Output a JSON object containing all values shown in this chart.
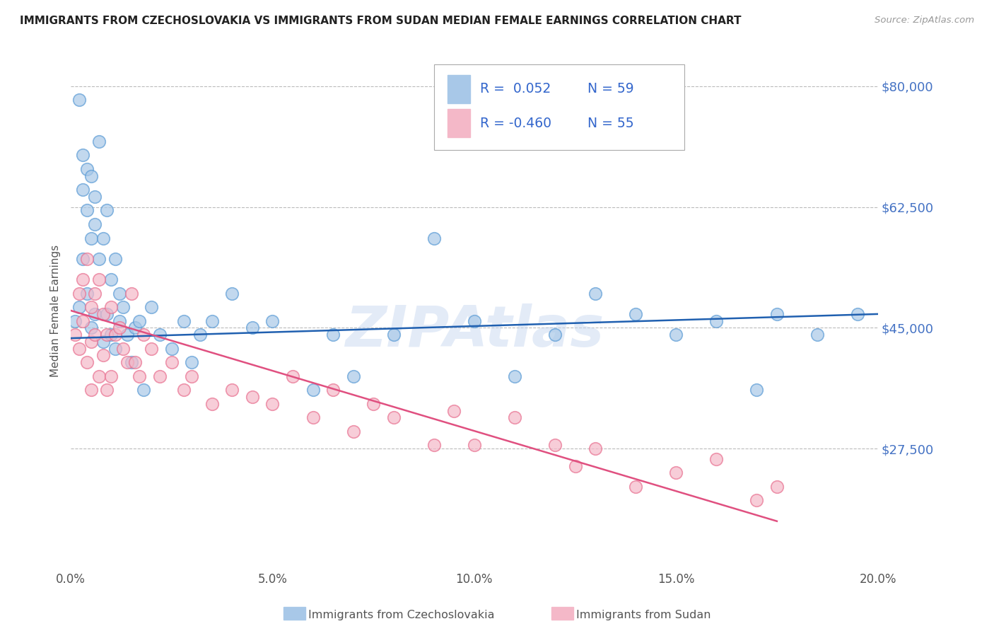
{
  "title": "IMMIGRANTS FROM CZECHOSLOVAKIA VS IMMIGRANTS FROM SUDAN MEDIAN FEMALE EARNINGS CORRELATION CHART",
  "source": "Source: ZipAtlas.com",
  "ylabel": "Median Female Earnings",
  "xmin": 0.0,
  "xmax": 0.2,
  "ymin": 10000,
  "ymax": 85000,
  "yticks": [
    27500,
    45000,
    62500,
    80000
  ],
  "ytick_labels": [
    "$27,500",
    "$45,000",
    "$62,500",
    "$80,000"
  ],
  "xticks": [
    0.0,
    0.05,
    0.1,
    0.15,
    0.2
  ],
  "xtick_labels": [
    "0.0%",
    "5.0%",
    "10.0%",
    "15.0%",
    "20.0%"
  ],
  "blue_color": "#a8c8e8",
  "blue_edge_color": "#5b9bd5",
  "pink_color": "#f4b8c8",
  "pink_edge_color": "#e87090",
  "blue_line_color": "#2060b0",
  "pink_line_color": "#e05080",
  "legend_text_color": "#3366cc",
  "legend_R1": "R =  0.052",
  "legend_N1": "N = 59",
  "legend_R2": "R = -0.460",
  "legend_N2": "N = 55",
  "label1": "Immigrants from Czechoslovakia",
  "label2": "Immigrants from Sudan",
  "watermark": "ZIPAtlas",
  "background_color": "#ffffff",
  "grid_color": "#bbbbbb",
  "title_color": "#222222",
  "axis_label_color": "#4472c4",
  "blue_scatter_x": [
    0.001,
    0.002,
    0.002,
    0.003,
    0.003,
    0.003,
    0.004,
    0.004,
    0.004,
    0.005,
    0.005,
    0.005,
    0.006,
    0.006,
    0.006,
    0.007,
    0.007,
    0.008,
    0.008,
    0.009,
    0.009,
    0.01,
    0.01,
    0.011,
    0.011,
    0.012,
    0.012,
    0.013,
    0.014,
    0.015,
    0.016,
    0.017,
    0.018,
    0.02,
    0.022,
    0.025,
    0.028,
    0.03,
    0.032,
    0.035,
    0.04,
    0.045,
    0.05,
    0.06,
    0.065,
    0.07,
    0.08,
    0.09,
    0.1,
    0.11,
    0.12,
    0.13,
    0.14,
    0.15,
    0.16,
    0.17,
    0.175,
    0.185,
    0.195
  ],
  "blue_scatter_y": [
    46000,
    78000,
    48000,
    70000,
    65000,
    55000,
    68000,
    62000,
    50000,
    67000,
    58000,
    45000,
    64000,
    60000,
    47000,
    72000,
    55000,
    58000,
    43000,
    62000,
    47000,
    52000,
    44000,
    55000,
    42000,
    50000,
    46000,
    48000,
    44000,
    40000,
    45000,
    46000,
    36000,
    48000,
    44000,
    42000,
    46000,
    40000,
    44000,
    46000,
    50000,
    45000,
    46000,
    36000,
    44000,
    38000,
    44000,
    58000,
    46000,
    38000,
    44000,
    50000,
    47000,
    44000,
    46000,
    36000,
    47000,
    44000,
    47000
  ],
  "pink_scatter_x": [
    0.001,
    0.002,
    0.002,
    0.003,
    0.003,
    0.004,
    0.004,
    0.005,
    0.005,
    0.005,
    0.006,
    0.006,
    0.007,
    0.007,
    0.008,
    0.008,
    0.009,
    0.009,
    0.01,
    0.01,
    0.011,
    0.012,
    0.013,
    0.014,
    0.015,
    0.016,
    0.017,
    0.018,
    0.02,
    0.022,
    0.025,
    0.028,
    0.03,
    0.035,
    0.04,
    0.045,
    0.05,
    0.055,
    0.06,
    0.065,
    0.07,
    0.075,
    0.08,
    0.09,
    0.095,
    0.1,
    0.11,
    0.12,
    0.125,
    0.13,
    0.14,
    0.15,
    0.16,
    0.17,
    0.175
  ],
  "pink_scatter_y": [
    44000,
    50000,
    42000,
    52000,
    46000,
    55000,
    40000,
    48000,
    43000,
    36000,
    50000,
    44000,
    52000,
    38000,
    47000,
    41000,
    44000,
    36000,
    48000,
    38000,
    44000,
    45000,
    42000,
    40000,
    50000,
    40000,
    38000,
    44000,
    42000,
    38000,
    40000,
    36000,
    38000,
    34000,
    36000,
    35000,
    34000,
    38000,
    32000,
    36000,
    30000,
    34000,
    32000,
    28000,
    33000,
    28000,
    32000,
    28000,
    25000,
    27500,
    22000,
    24000,
    26000,
    20000,
    22000
  ],
  "blue_line_x": [
    0.0,
    0.2
  ],
  "blue_line_y": [
    43500,
    47000
  ],
  "pink_line_x": [
    0.0,
    0.175
  ],
  "pink_line_y": [
    47500,
    17000
  ]
}
